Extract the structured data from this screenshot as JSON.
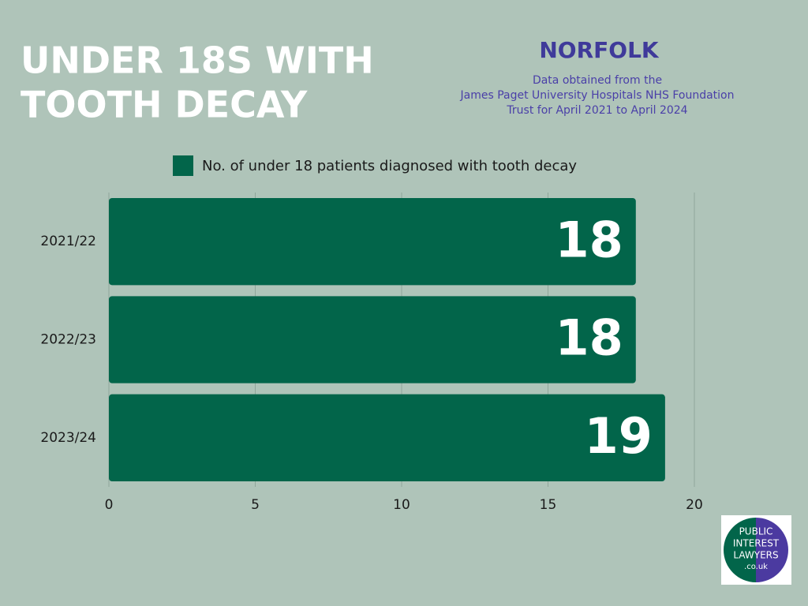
{
  "chart_data": {
    "type": "barh",
    "title_lines": [
      "UNDER 18S WITH",
      "TOOTH DECAY"
    ],
    "subtitle": "NORFOLK",
    "note_lines": [
      "Data obtained from the",
      "James Paget University Hospitals NHS Foundation",
      "Trust for April 2021 to April 2024"
    ],
    "categories": [
      "2021/22",
      "2022/23",
      "2023/24"
    ],
    "series": [
      {
        "name": "No. of under 18 patients diagnosed with tooth decay",
        "color": "#02654a",
        "values": [
          18,
          18,
          19
        ]
      }
    ],
    "xlim": [
      0,
      20
    ],
    "xticks": [
      0,
      5,
      10,
      15,
      20
    ],
    "grid": true,
    "legend": "top",
    "logo_lines": [
      "PUBLIC",
      "INTEREST",
      "LAWYERS",
      ".co.uk"
    ]
  }
}
